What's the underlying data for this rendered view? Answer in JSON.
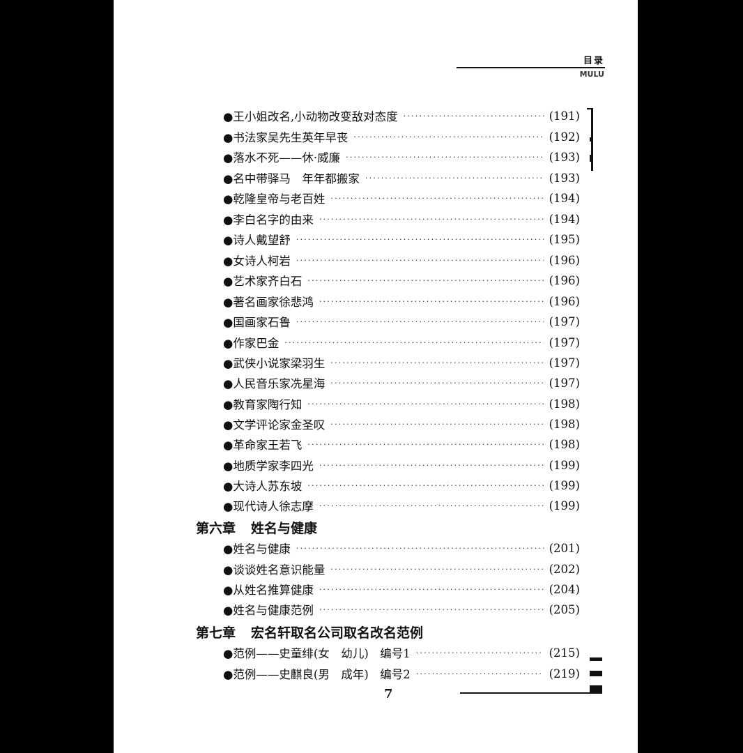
{
  "header": {
    "title": "目录",
    "subtitle": "MULU"
  },
  "sections": [
    {
      "entries": [
        {
          "title": "●王小姐改名,小动物改变敌对态度",
          "page": "(191)"
        },
        {
          "title": "●书法家吴先生英年早丧",
          "page": "(192)"
        },
        {
          "title": "●落水不死——休·威廉",
          "page": "(193)"
        },
        {
          "title": "●名中带驿马　年年都搬家",
          "page": "(193)"
        },
        {
          "title": "●乾隆皇帝与老百姓",
          "page": "(194)"
        },
        {
          "title": "●李白名字的由来",
          "page": "(194)"
        },
        {
          "title": "●诗人戴望舒",
          "page": "(195)"
        },
        {
          "title": "●女诗人柯岩",
          "page": "(196)"
        },
        {
          "title": "●艺术家齐白石",
          "page": "(196)"
        },
        {
          "title": "●著名画家徐悲鸿",
          "page": "(196)"
        },
        {
          "title": "●国画家石鲁",
          "page": "(197)"
        },
        {
          "title": "●作家巴金",
          "page": "(197)"
        },
        {
          "title": "●武侠小说家梁羽生",
          "page": "(197)"
        },
        {
          "title": "●人民音乐家冼星海",
          "page": "(197)"
        },
        {
          "title": "●教育家陶行知",
          "page": "(198)"
        },
        {
          "title": "●文学评论家金圣叹",
          "page": "(198)"
        },
        {
          "title": "●革命家王若飞",
          "page": "(198)"
        },
        {
          "title": "●地质学家李四光",
          "page": "(199)"
        },
        {
          "title": "●大诗人苏东坡",
          "page": "(199)"
        },
        {
          "title": "●现代诗人徐志摩",
          "page": "(199)"
        }
      ]
    },
    {
      "chapter": "第六章",
      "chapter_title": "姓名与健康",
      "entries": [
        {
          "title": "●姓名与健康",
          "page": "(201)"
        },
        {
          "title": "●谈谈姓名意识能量",
          "page": "(202)"
        },
        {
          "title": "●从姓名推算健康",
          "page": "(204)"
        },
        {
          "title": "●姓名与健康范例",
          "page": "(205)"
        }
      ]
    },
    {
      "chapter": "第七章",
      "chapter_title": "宏名轩取名公司取名改名范例",
      "entries": [
        {
          "title": "●范例——史童绯(女　幼儿)　编号1",
          "page": "(215)"
        },
        {
          "title": "●范例——史麒良(男　成年)　编号2",
          "page": "(219)"
        }
      ]
    }
  ],
  "footer": {
    "page_number": "7"
  }
}
